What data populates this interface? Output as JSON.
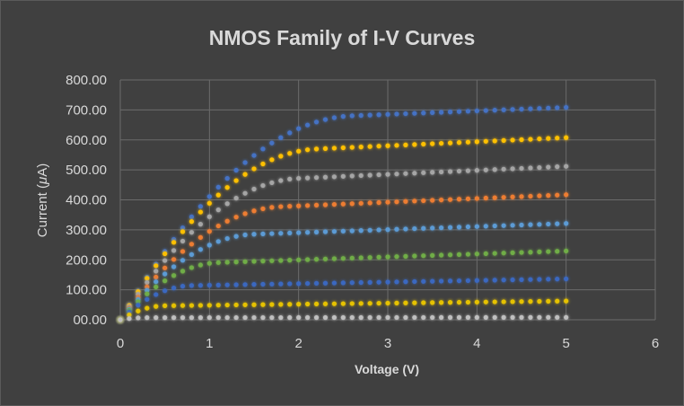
{
  "chart_data": {
    "type": "scatter",
    "title": "NMOS Family of I-V Curves",
    "xlabel": "Voltage (V)",
    "ylabel_prefix": "Current (",
    "ylabel_mu": "μ",
    "ylabel_suffix": "A)",
    "xlim": [
      0,
      6
    ],
    "ylim": [
      0,
      800
    ],
    "x_ticks": [
      "0",
      "1",
      "2",
      "3",
      "4",
      "5",
      "6"
    ],
    "y_ticks": [
      "00.00",
      "100.00",
      "200.00",
      "300.00",
      "400.00",
      "500.00",
      "600.00",
      "700.00",
      "800.00"
    ],
    "grid": true,
    "legend": "none",
    "x": [
      0,
      0.1,
      0.2,
      0.3,
      0.4,
      0.5,
      0.6,
      0.7,
      0.8,
      0.9,
      1.0,
      1.1,
      1.2,
      1.3,
      1.4,
      1.5,
      1.6,
      1.7,
      1.8,
      1.9,
      2.0,
      2.1,
      2.2,
      2.3,
      2.4,
      2.5,
      2.6,
      2.7,
      2.8,
      2.9,
      3.0,
      3.1,
      3.2,
      3.3,
      3.4,
      3.5,
      3.6,
      3.7,
      3.8,
      3.9,
      4.0,
      4.1,
      4.2,
      4.3,
      4.4,
      4.5,
      4.6,
      4.7,
      4.8,
      4.9,
      5.0
    ],
    "series": [
      {
        "color": "#4472c4",
        "vsat": 2.6,
        "isat": 650,
        "slope": 0.018
      },
      {
        "color": "#ffc000",
        "vsat": 2.2,
        "isat": 540,
        "slope": 0.025
      },
      {
        "color": "#a5a5a5",
        "vsat": 2.0,
        "isat": 445,
        "slope": 0.03
      },
      {
        "color": "#ed7d31",
        "vsat": 1.8,
        "isat": 355,
        "slope": 0.035
      },
      {
        "color": "#5b9bd5",
        "vsat": 1.5,
        "isat": 270,
        "slope": 0.038
      },
      {
        "color": "#70ad47",
        "vsat": 1.1,
        "isat": 180,
        "slope": 0.055
      },
      {
        "color": "#3a68c0",
        "vsat": 0.8,
        "isat": 110,
        "slope": 0.048
      },
      {
        "color": "#e6c200",
        "vsat": 0.5,
        "isat": 45,
        "slope": 0.078
      },
      {
        "color": "#bfbfbf",
        "vsat": 0.3,
        "isat": 7,
        "slope": 0.03
      }
    ]
  }
}
